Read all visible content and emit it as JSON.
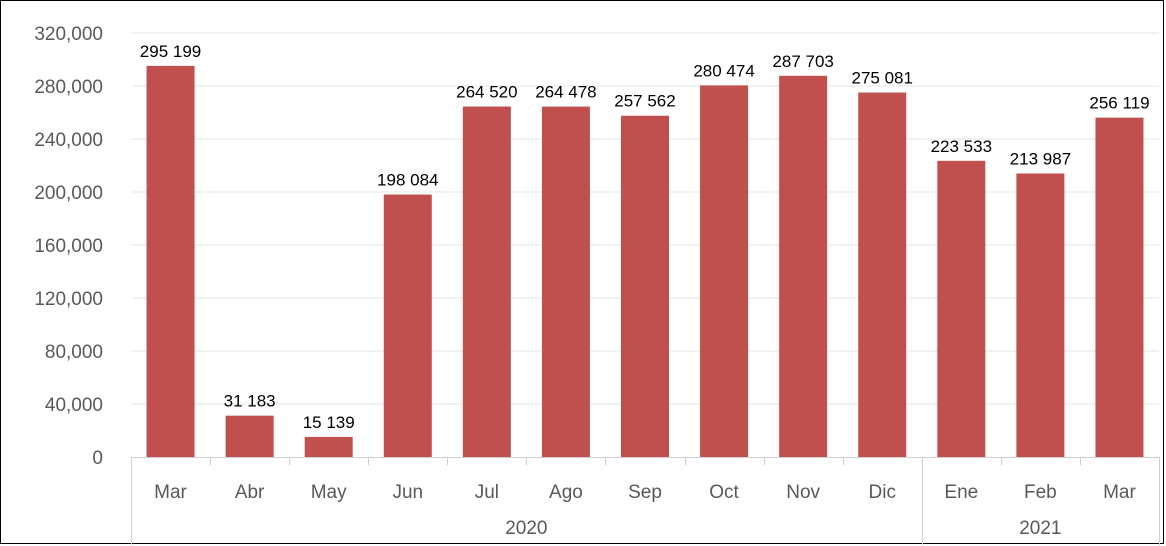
{
  "chart_data": {
    "type": "bar",
    "categories": [
      "Mar",
      "Abr",
      "May",
      "Jun",
      "Jul",
      "Ago",
      "Sep",
      "Oct",
      "Nov",
      "Dic",
      "Ene",
      "Feb",
      "Mar"
    ],
    "values": [
      295199,
      31183,
      15139,
      198084,
      264520,
      264478,
      257562,
      280474,
      287703,
      275081,
      223533,
      213987,
      256119
    ],
    "data_labels": [
      "295 199",
      "31 183",
      "15 139",
      "198 084",
      "264 520",
      "264 478",
      "257 562",
      "280 474",
      "287 703",
      "275 081",
      "223 533",
      "213 987",
      "256 119"
    ],
    "year_groups": [
      {
        "label": "2020",
        "start": 0,
        "end": 9
      },
      {
        "label": "2021",
        "start": 10,
        "end": 12
      }
    ],
    "y_ticks": [
      "0",
      "40,000",
      "80,000",
      "120,000",
      "160,000",
      "200,000",
      "240,000",
      "280,000",
      "320,000"
    ],
    "ylim": [
      0,
      320000
    ],
    "title": "",
    "xlabel": "",
    "ylabel": "",
    "grid": true,
    "bar_color": "#c0504d",
    "grid_color": "#e6e6e6"
  }
}
